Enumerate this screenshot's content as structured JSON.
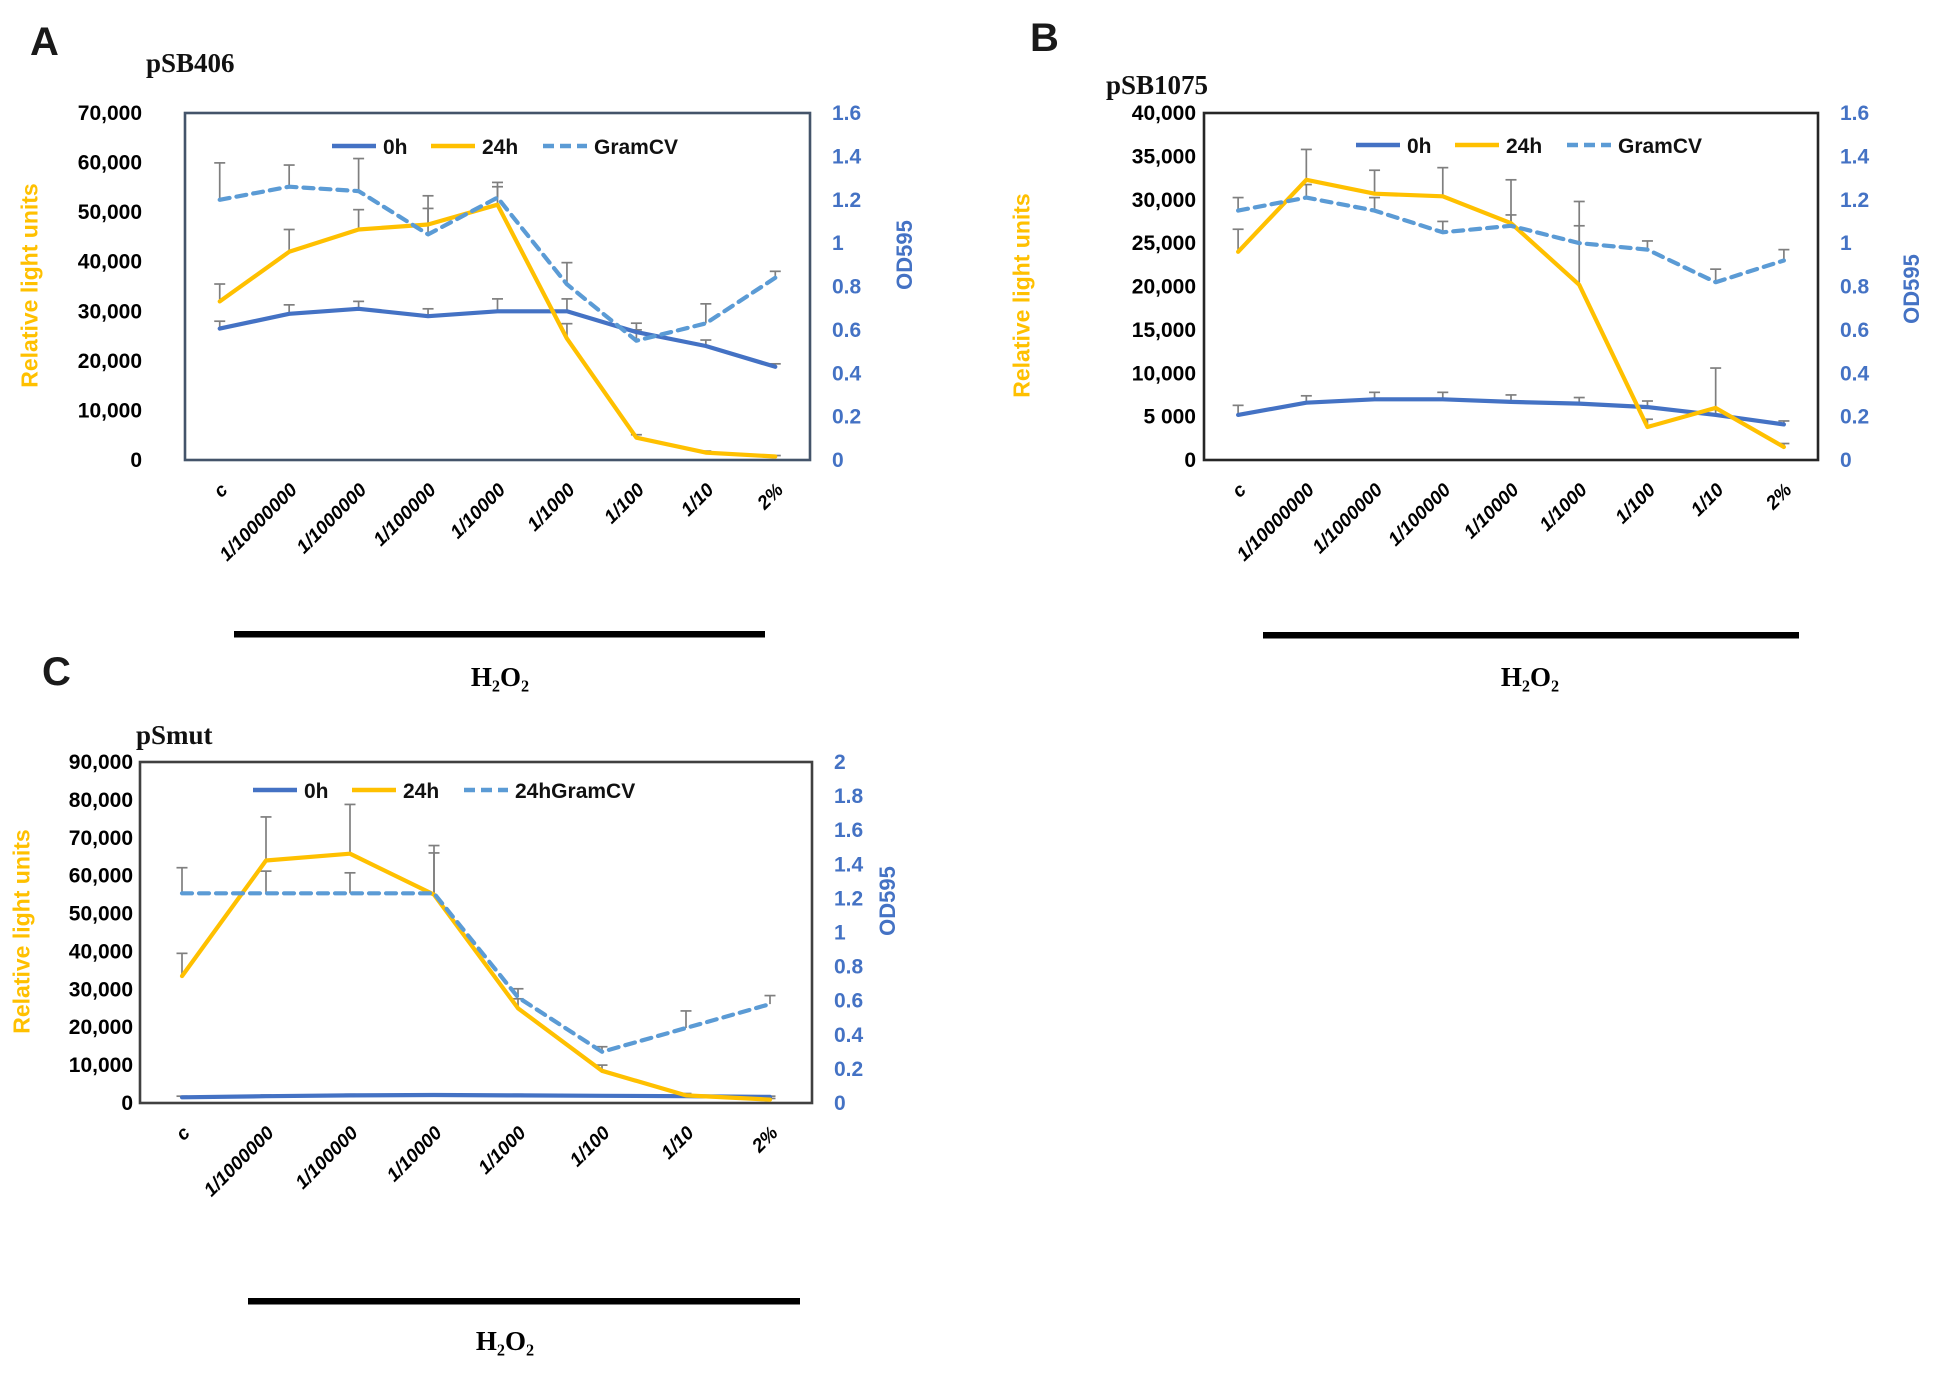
{
  "figure": {
    "background": "#ffffff",
    "colors": {
      "series_0h": "#4472C4",
      "series_24h": "#FFC000",
      "series_gram": "#5B9BD5",
      "error_bar": "#7F7F7F",
      "left_tick_text": "#000000",
      "right_tick_text": "#4472C4",
      "left_axis_title": "#FFC000",
      "h2o2_bar": "#000000"
    }
  },
  "chart_data": [
    {
      "type": "line",
      "panel_letter": "A",
      "title": "pSB406",
      "ylabel_left": "Relative light units",
      "ylabel_right": "OD595",
      "h2o2_label": "H₂O₂",
      "border_color": "#44546A",
      "categories": [
        "c",
        "1/10000000",
        "1/1000000",
        "1/100000",
        "1/10000",
        "1/1000",
        "1/100",
        "1/10",
        "2%"
      ],
      "left_axis": {
        "min": 0,
        "max": 70000,
        "labels": [
          "70,000",
          "60,000",
          "50,000",
          "40,000",
          "30,000",
          "20,000",
          "10,000",
          "0"
        ],
        "values": [
          70000,
          60000,
          50000,
          40000,
          30000,
          20000,
          10000,
          0
        ]
      },
      "right_axis": {
        "min": 0,
        "max": 1.6,
        "labels": [
          "1.6",
          "1.4",
          "1.2",
          "1",
          "0.8",
          "0.6",
          "0.4",
          "0.2",
          "0"
        ],
        "values": [
          1.6,
          1.4,
          1.2,
          1.0,
          0.8,
          0.6,
          0.4,
          0.2,
          0
        ]
      },
      "legend": [
        "0h",
        "24h",
        "GramCV"
      ],
      "series": [
        {
          "name": "0h",
          "axis": "left",
          "style": "solid",
          "color": "#4472C4",
          "values": [
            26500,
            29500,
            30500,
            29000,
            30000,
            30000,
            25800,
            23000,
            18800
          ],
          "errors": [
            1500,
            1800,
            1500,
            1500,
            2500,
            2500,
            1800,
            1200,
            600
          ]
        },
        {
          "name": "24h",
          "axis": "left",
          "style": "solid",
          "color": "#FFC000",
          "values": [
            32000,
            42000,
            46500,
            47500,
            51500,
            24500,
            4500,
            1500,
            700
          ],
          "errors": [
            3500,
            4500,
            4000,
            5800,
            4500,
            3000,
            600,
            300,
            200
          ]
        },
        {
          "name": "GramCV",
          "axis": "right",
          "style": "dashed",
          "color": "#5B9BD5",
          "values": [
            1.2,
            1.26,
            1.24,
            1.04,
            1.21,
            0.81,
            0.55,
            0.63,
            0.84
          ],
          "errors": [
            0.17,
            0.1,
            0.15,
            0.12,
            0.05,
            0.1,
            0.05,
            0.09,
            0.03
          ]
        }
      ]
    },
    {
      "type": "line",
      "panel_letter": "B",
      "title": "pSB1075",
      "ylabel_left": "Relative light units",
      "ylabel_right": "OD595",
      "h2o2_label": "H₂O₂",
      "border_color": "#262626",
      "categories": [
        "c",
        "1/10000000",
        "1/1000000",
        "1/100000",
        "1/10000",
        "1/1000",
        "1/100",
        "1/10",
        "2%"
      ],
      "left_axis": {
        "min": 0,
        "max": 40000,
        "labels": [
          "40,000",
          "35,000",
          "30,000",
          "25,000",
          "20,000",
          "15,000",
          "10,000",
          "5 000",
          "0"
        ],
        "values": [
          40000,
          35000,
          30000,
          25000,
          20000,
          15000,
          10000,
          5000,
          0
        ]
      },
      "right_axis": {
        "min": 0,
        "max": 1.6,
        "labels": [
          "1.6",
          "1.4",
          "1.2",
          "1",
          "0.8",
          "0.6",
          "0.4",
          "0.2",
          "0"
        ],
        "values": [
          1.6,
          1.4,
          1.2,
          1.0,
          0.8,
          0.6,
          0.4,
          0.2,
          0
        ]
      },
      "legend": [
        "0h",
        "24h",
        "GramCV"
      ],
      "series": [
        {
          "name": "0h",
          "axis": "left",
          "style": "solid",
          "color": "#4472C4",
          "values": [
            5200,
            6600,
            7000,
            7000,
            6700,
            6500,
            6100,
            5200,
            4100
          ],
          "errors": [
            1100,
            800,
            800,
            800,
            800,
            700,
            700,
            600,
            400
          ]
        },
        {
          "name": "24h",
          "axis": "left",
          "style": "solid",
          "color": "#FFC000",
          "values": [
            24000,
            32300,
            30700,
            30400,
            27300,
            20200,
            3800,
            6000,
            1500
          ],
          "errors": [
            2600,
            3500,
            2700,
            3300,
            5000,
            9600,
            900,
            4600,
            400
          ]
        },
        {
          "name": "GramCV",
          "axis": "right",
          "style": "dashed",
          "color": "#5B9BD5",
          "values": [
            1.15,
            1.21,
            1.15,
            1.05,
            1.08,
            1.0,
            0.97,
            0.82,
            0.92
          ],
          "errors": [
            0.06,
            0.06,
            0.06,
            0.05,
            0.05,
            0.08,
            0.04,
            0.06,
            0.05
          ]
        }
      ]
    },
    {
      "type": "line",
      "panel_letter": "C",
      "title": "pSmut",
      "ylabel_left": "Relative light units",
      "ylabel_right": "OD595",
      "h2o2_label": "H₂O₂",
      "border_color": "#404040",
      "categories": [
        "c",
        "1/1000000",
        "1/100000",
        "1/10000",
        "1/1000",
        "1/100",
        "1/10",
        "2%"
      ],
      "left_axis": {
        "min": 0,
        "max": 90000,
        "labels": [
          "90,000",
          "80,000",
          "70,000",
          "60,000",
          "50,000",
          "40,000",
          "30,000",
          "20,000",
          "10,000",
          "0"
        ],
        "values": [
          90000,
          80000,
          70000,
          60000,
          50000,
          40000,
          30000,
          20000,
          10000,
          0
        ]
      },
      "right_axis": {
        "min": 0,
        "max": 2,
        "labels": [
          "2",
          "1.8",
          "1.6",
          "1.4",
          "1.2",
          "1",
          "0.8",
          "0.6",
          "0.4",
          "0.2",
          "0"
        ],
        "values": [
          2,
          1.8,
          1.6,
          1.4,
          1.2,
          1.0,
          0.8,
          0.6,
          0.4,
          0.2,
          0
        ]
      },
      "legend": [
        "0h",
        "24h",
        "24hGramCV"
      ],
      "series": [
        {
          "name": "0h",
          "axis": "left",
          "style": "solid",
          "color": "#4472C4",
          "values": [
            1500,
            1800,
            2000,
            2100,
            2000,
            1900,
            1800,
            1600
          ],
          "errors": [
            300,
            300,
            300,
            300,
            300,
            200,
            200,
            200
          ]
        },
        {
          "name": "24h",
          "axis": "left",
          "style": "solid",
          "color": "#FFC000",
          "values": [
            33500,
            64000,
            65800,
            55000,
            25000,
            8500,
            2000,
            900
          ],
          "errors": [
            6000,
            11500,
            13000,
            11000,
            2500,
            1500,
            500,
            300
          ]
        },
        {
          "name": "24hGramCV",
          "axis": "right",
          "style": "dashed",
          "color": "#5B9BD5",
          "values": [
            1.23,
            1.23,
            1.23,
            1.23,
            0.62,
            0.3,
            0.44,
            0.58
          ],
          "errors": [
            0.15,
            0.13,
            0.12,
            0.28,
            0.05,
            0.03,
            0.1,
            0.05
          ]
        }
      ]
    }
  ]
}
